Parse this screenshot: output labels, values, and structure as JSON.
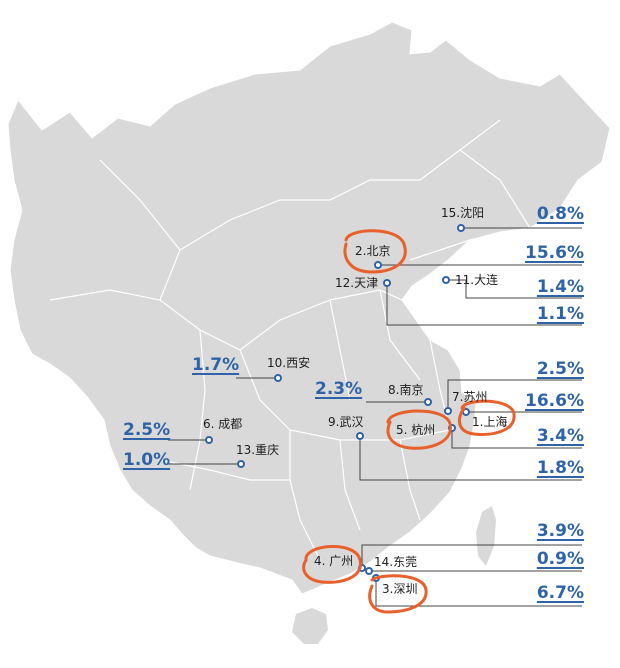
{
  "colors": {
    "land": "#d9d9d9",
    "border": "#ffffff",
    "marker": "#2f63a8",
    "leader": "#444444",
    "highlight": "#e8612c",
    "value_text": "#2f63a8"
  },
  "cities": [
    {
      "id": "shenyang",
      "label": "15.沈阳",
      "value": "0.8%"
    },
    {
      "id": "beijing",
      "label": "2.北京",
      "value": "15.6%",
      "highlighted": true
    },
    {
      "id": "dalian",
      "label": "11.大连",
      "value": "1.4%"
    },
    {
      "id": "tianjin",
      "label": "12.天津",
      "value": "1.1%"
    },
    {
      "id": "xian",
      "label": "10.西安",
      "value": "1.7%"
    },
    {
      "id": "nanjing",
      "label": "8.南京",
      "value": "2.3%"
    },
    {
      "id": "suzhou",
      "label": "7.苏州",
      "value": "2.5%"
    },
    {
      "id": "shanghai",
      "label": "1.上海",
      "value": "16.6%",
      "highlighted": true
    },
    {
      "id": "hangzhou",
      "label": "5. 杭州",
      "value": "3.4%",
      "highlighted": true
    },
    {
      "id": "chengdu",
      "label": "6. 成都",
      "value": "2.5%"
    },
    {
      "id": "wuhan",
      "label": "9.武汉",
      "value": "1.8%"
    },
    {
      "id": "chongqing",
      "label": "13.重庆",
      "value": "1.0%"
    },
    {
      "id": "guangzhou",
      "label": "4. 广州",
      "value": "3.9%",
      "highlighted": true
    },
    {
      "id": "dongguan",
      "label": "14.东莞",
      "value": "0.9%"
    },
    {
      "id": "shenzhen",
      "label": "3.深圳",
      "value": "6.7%",
      "highlighted": true
    }
  ]
}
